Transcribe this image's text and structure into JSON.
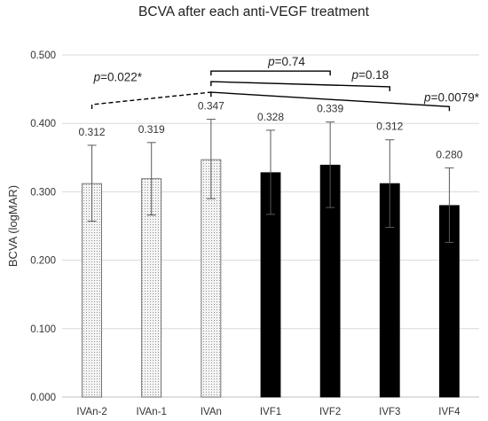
{
  "chart_data": {
    "type": "bar",
    "title": "BCVA after each anti-VEGF treatment",
    "ylabel": "BCVA (logMAR)",
    "xlabel": "",
    "ylim": [
      0,
      0.5
    ],
    "yticks": [
      "0.000",
      "0.100",
      "0.200",
      "0.300",
      "0.400",
      "0.500"
    ],
    "grid": true,
    "categories": [
      "IVAn-2",
      "IVAn-1",
      "IVAn",
      "IVF1",
      "IVF2",
      "IVF3",
      "IVF4"
    ],
    "values": [
      0.312,
      0.319,
      0.347,
      0.328,
      0.339,
      0.312,
      0.28
    ],
    "value_labels": [
      "0.312",
      "0.319",
      "0.347",
      "0.328",
      "0.339",
      "0.312",
      "0.280"
    ],
    "error_low": [
      0.257,
      0.266,
      0.29,
      0.267,
      0.277,
      0.248,
      0.226
    ],
    "error_high": [
      0.368,
      0.372,
      0.406,
      0.39,
      0.402,
      0.376,
      0.335
    ],
    "bar_fill": [
      "dotted",
      "dotted",
      "dotted",
      "solid",
      "solid",
      "solid",
      "solid"
    ],
    "colors": {
      "dotted_bar": "#f2f2f2",
      "solid_bar": "#000000",
      "grid": "#d9d9d9"
    },
    "annotations": [
      {
        "label_italic": "p",
        "label_rest": "=0.022*",
        "from": "IVAn-2",
        "to": "IVAn",
        "style": "dashed"
      },
      {
        "label_italic": "p",
        "label_rest": "=0.74",
        "from": "IVAn",
        "to": "IVF2",
        "style": "solid"
      },
      {
        "label_italic": "p",
        "label_rest": "=0.18",
        "from": "IVAn",
        "to": "IVF3",
        "style": "solid"
      },
      {
        "label_italic": "p",
        "label_rest": "=0.0079*",
        "from": "IVAn",
        "to": "IVF4",
        "style": "solid"
      }
    ]
  }
}
